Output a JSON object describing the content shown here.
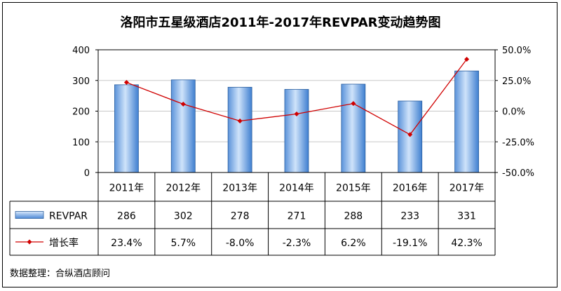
{
  "chart_data": {
    "type": "bar+line",
    "title": "洛阳市五星级酒店2011年-2017年REVPAR变动趋势图",
    "categories": [
      "2011年",
      "2012年",
      "2013年",
      "2014年",
      "2015年",
      "2016年",
      "2017年"
    ],
    "series": [
      {
        "name": "REVPAR",
        "type": "bar",
        "axis": "left",
        "values": [
          286,
          302,
          278,
          271,
          288,
          233,
          331
        ],
        "labels": [
          "286",
          "302",
          "278",
          "271",
          "288",
          "233",
          "331"
        ],
        "color": "#7fb0e6"
      },
      {
        "name": "增长率",
        "type": "line",
        "axis": "right",
        "values": [
          23.4,
          5.7,
          -8.0,
          -2.3,
          6.2,
          -19.1,
          42.3
        ],
        "labels": [
          "23.4%",
          "5.7%",
          "-8.0%",
          "-2.3%",
          "6.2%",
          "-19.1%",
          "42.3%"
        ],
        "color": "#d00000"
      }
    ],
    "y_left": {
      "min": 0,
      "max": 400,
      "ticks": [
        0,
        100,
        200,
        300,
        400
      ],
      "tick_labels": [
        "0",
        "100",
        "200",
        "300",
        "400"
      ]
    },
    "y_right": {
      "min": -50,
      "max": 50,
      "ticks": [
        -50,
        -25,
        0,
        25,
        50
      ],
      "tick_labels": [
        "-50.0%",
        "-25.0%",
        "0.0%",
        "25.0%",
        "50.0%"
      ]
    },
    "grid": true,
    "legend": "data-table"
  },
  "source": "数据整理：合纵酒店顾问",
  "colors": {
    "bar_top": "#cfe3fa",
    "bar_bottom": "#3f7fd0",
    "line": "#d00000",
    "grid": "#c8c8c8"
  }
}
